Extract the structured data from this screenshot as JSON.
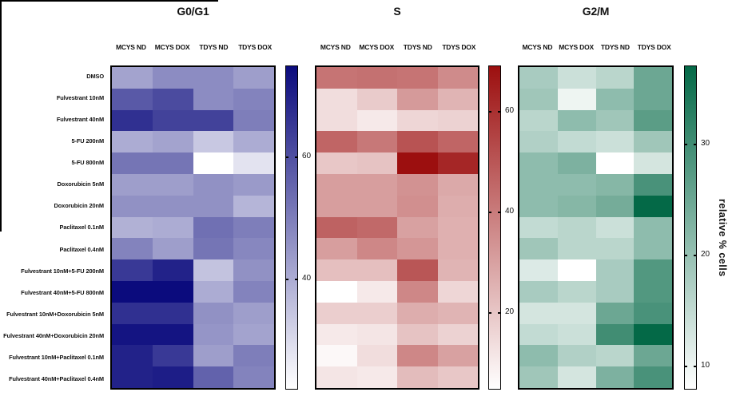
{
  "figure": {
    "ylabel": "relative % cells",
    "col_labels": [
      "MCYS ND",
      "MCYS DOX",
      "TDYS ND",
      "TDYS DOX"
    ],
    "row_labels": [
      "DMSO",
      "Fulvestrant 10nM",
      "Fulvestrant 40nM",
      "5-FU 200nM",
      "5-FU 800nM",
      "Doxorubicin 5nM",
      "Doxorubicin 20nM",
      "Paclitaxel 0.1nM",
      "Paclitaxel 0.4nM",
      "Fulvestrant 10nM+5-FU 200nM",
      "Fulvestrant 40nM+5-FU 800nM",
      "Fulvestrant 10nM+Doxorubicin 5nM",
      "Fulvestrant 40nM+Doxorubicin 20nM",
      "Fulvestrant 10nM+Paclitaxel 0.1nM",
      "Fulvestrant 40nM+Paclitaxel 0.4nM"
    ]
  },
  "chart_data": {
    "type": "heatmap",
    "note": "relative % cells per cell-cycle phase; rows = treatments, columns = cell lines",
    "columns": [
      "MCYS ND",
      "MCYS DOX",
      "TDYS ND",
      "TDYS DOX"
    ],
    "rows": [
      "DMSO",
      "Fulvestrant 10nM",
      "Fulvestrant 40nM",
      "5-FU 200nM",
      "5-FU 800nM",
      "Doxorubicin 5nM",
      "Doxorubicin 20nM",
      "Paclitaxel 0.1nM",
      "Paclitaxel 0.4nM",
      "Fulvestrant 10nM+5-FU 200nM",
      "Fulvestrant 40nM+5-FU 800nM",
      "Fulvestrant 10nM+Doxorubicin 5nM",
      "Fulvestrant 40nM+Doxorubicin 20nM",
      "Fulvestrant 10nM+Paclitaxel 0.1nM",
      "Fulvestrant 40nM+Paclitaxel 0.4nM"
    ],
    "panels": [
      {
        "title": "G0/G1",
        "colormap_low": "#ffffff",
        "colormap_high": "#0b0b7d",
        "colorbar": {
          "vmin": 22,
          "vmax": 75,
          "ticks": [
            40,
            60
          ]
        },
        "values": [
          [
            42,
            47,
            47,
            43
          ],
          [
            58,
            61,
            47,
            49
          ],
          [
            67,
            63,
            63,
            50
          ],
          [
            40,
            42,
            34,
            40
          ],
          [
            52,
            52,
            22,
            28
          ],
          [
            43,
            43,
            46,
            44
          ],
          [
            46,
            46,
            46,
            38
          ],
          [
            39,
            40,
            53,
            50
          ],
          [
            49,
            43,
            52,
            48
          ],
          [
            65,
            70,
            35,
            46
          ],
          [
            75,
            75,
            40,
            49
          ],
          [
            67,
            67,
            46,
            43
          ],
          [
            73,
            73,
            45,
            42
          ],
          [
            70,
            65,
            43,
            50
          ],
          [
            70,
            71,
            56,
            49
          ]
        ]
      },
      {
        "title": "S",
        "colormap_low": "#ffffff",
        "colormap_high": "#9c0f0f",
        "colorbar": {
          "vmin": 5,
          "vmax": 69,
          "ticks": [
            20,
            40,
            60
          ]
        },
        "values": [
          [
            42,
            43,
            42,
            36
          ],
          [
            14,
            19,
            32,
            25
          ],
          [
            14,
            11,
            16,
            17
          ],
          [
            46,
            41,
            51,
            46
          ],
          [
            20,
            21,
            69,
            63
          ],
          [
            31,
            31,
            34,
            28
          ],
          [
            31,
            31,
            35,
            27
          ],
          [
            47,
            45,
            30,
            26
          ],
          [
            31,
            37,
            33,
            26
          ],
          [
            22,
            22,
            50,
            25
          ],
          [
            5,
            11,
            37,
            16
          ],
          [
            18,
            18,
            27,
            25
          ],
          [
            11,
            12,
            21,
            17
          ],
          [
            7,
            14,
            37,
            30
          ],
          [
            12,
            11,
            23,
            20
          ]
        ]
      },
      {
        "title": "G2/M",
        "colormap_low": "#ffffff",
        "colormap_high": "#046947",
        "colorbar": {
          "vmin": 8,
          "vmax": 37,
          "ticks": [
            10,
            20,
            30
          ]
        },
        "values": [
          [
            18,
            14,
            16,
            25
          ],
          [
            19,
            10,
            21,
            25
          ],
          [
            16,
            21,
            19,
            27
          ],
          [
            17,
            15,
            14,
            19
          ],
          [
            21,
            23,
            8,
            13
          ],
          [
            21,
            21,
            22,
            29
          ],
          [
            21,
            22,
            24,
            37
          ],
          [
            15,
            16,
            14,
            21
          ],
          [
            19,
            16,
            16,
            21
          ],
          [
            12,
            8,
            18,
            28
          ],
          [
            18,
            16,
            18,
            28
          ],
          [
            13,
            13,
            25,
            29
          ],
          [
            15,
            14,
            30,
            37
          ],
          [
            21,
            17,
            16,
            25
          ],
          [
            19,
            13,
            23,
            29
          ]
        ]
      }
    ]
  }
}
